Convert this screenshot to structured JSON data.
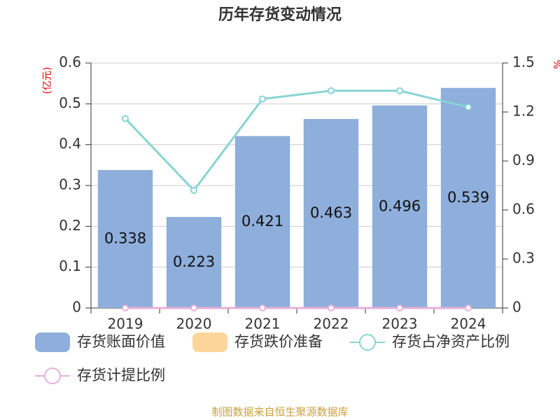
{
  "chart_data": {
    "type": "bar",
    "title": "历年存货变动情况",
    "ylabel": "(亿元)",
    "y2label": "%",
    "categories": [
      "2019",
      "2020",
      "2021",
      "2022",
      "2023",
      "2024"
    ],
    "ylim": [
      0,
      0.6
    ],
    "yticks": [
      0,
      0.1,
      0.2,
      0.3,
      0.4,
      0.5,
      0.6
    ],
    "y2lim": [
      0,
      1.5
    ],
    "y2ticks": [
      0,
      0.3,
      0.6,
      0.9,
      1.2,
      1.5
    ],
    "grid": true,
    "series": [
      {
        "name": "存货账面价值",
        "type": "bar",
        "color": "#8eaedb",
        "values": [
          0.338,
          0.223,
          0.421,
          0.463,
          0.496,
          0.539
        ]
      },
      {
        "name": "存货跌价准备",
        "type": "bar",
        "color": "#fcd59b",
        "values": [
          0,
          0,
          0,
          0,
          0,
          0
        ]
      },
      {
        "name": "存货占净资产比例",
        "type": "line",
        "axis": "y2",
        "color": "#88d4d4",
        "values": [
          1.16,
          0.72,
          1.28,
          1.33,
          1.33,
          1.23
        ]
      },
      {
        "name": "存货计提比例",
        "type": "line",
        "axis": "y2",
        "color": "#e5b0d9",
        "values": [
          0,
          0,
          0,
          0,
          0,
          0
        ]
      }
    ],
    "source": "制图数据来自恒生聚源数据库"
  }
}
